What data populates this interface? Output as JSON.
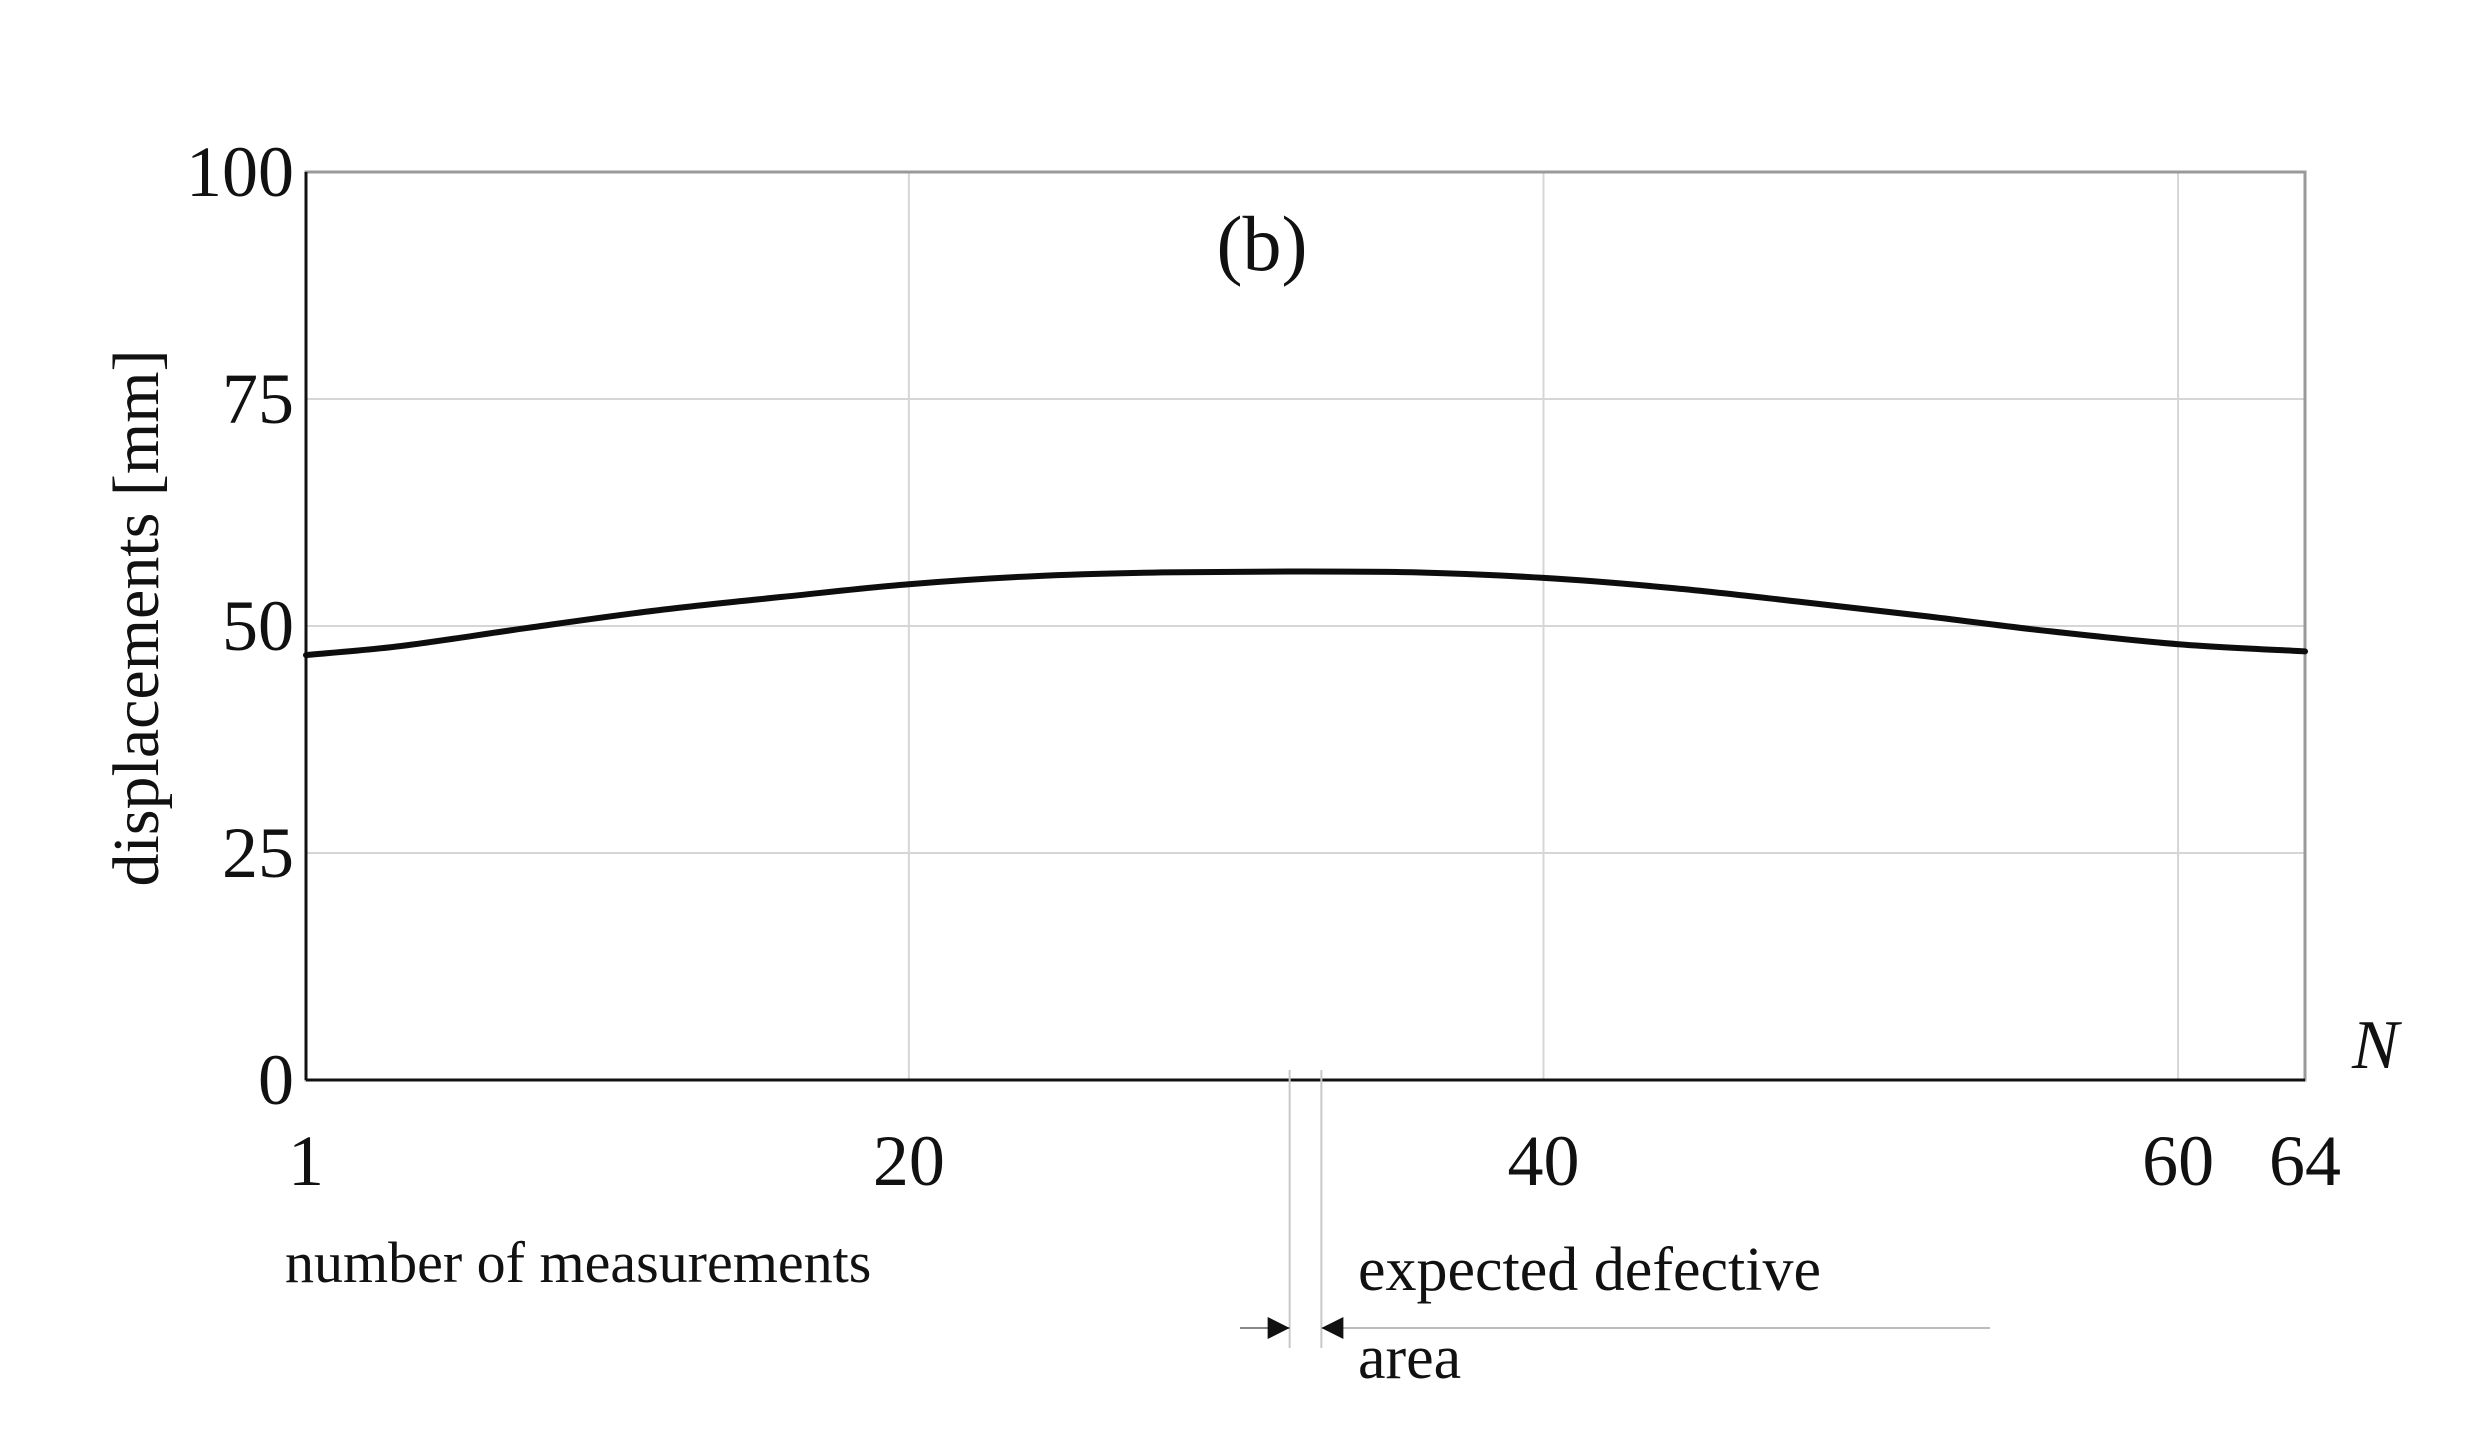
{
  "chart_data": {
    "type": "line",
    "panel_label": "(b)",
    "xlabel": "number of measurements",
    "x_axis_symbol": "N",
    "ylabel": "displacements [mm]",
    "xlim": [
      1,
      64
    ],
    "ylim": [
      0,
      100
    ],
    "x_ticks": [
      1,
      20,
      40,
      60,
      64
    ],
    "y_ticks": [
      0,
      25,
      50,
      75,
      100
    ],
    "x_gridlines": [
      20,
      40,
      60
    ],
    "y_gridlines": [
      25,
      50,
      75
    ],
    "grid": true,
    "series": [
      {
        "x": [
          1,
          4,
          8,
          12,
          16,
          20,
          24,
          28,
          32,
          36,
          40,
          44,
          48,
          52,
          56,
          60,
          64
        ],
        "y": [
          46.8,
          47.8,
          49.8,
          51.7,
          53.2,
          54.6,
          55.5,
          55.9,
          56.0,
          55.9,
          55.3,
          54.2,
          52.7,
          51.1,
          49.4,
          48.0,
          47.2
        ]
      }
    ],
    "annotation": {
      "text_line1": "expected defective",
      "text_line2": "area",
      "x_range": [
        32,
        33
      ]
    }
  }
}
